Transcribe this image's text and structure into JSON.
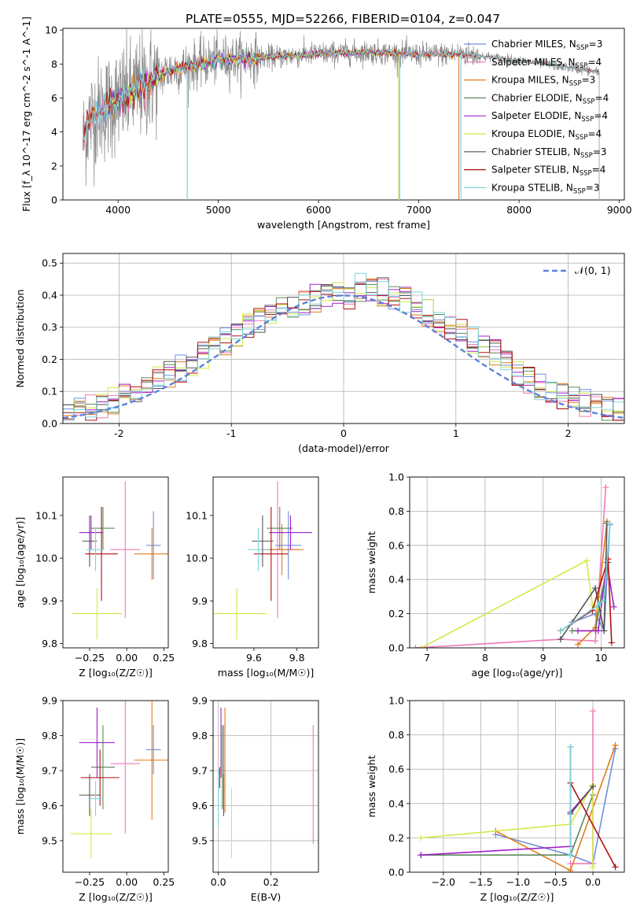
{
  "title": "PLATE=0555, MJD=52266, FIBERID=0104, z=0.047",
  "colors": {
    "Chabrier MILES": "#6f8fd9",
    "Salpeter MILES": "#f07ab8",
    "Kroupa MILES": "#e07b1a",
    "Chabrier ELODIE": "#5c8a5c",
    "Salpeter ELODIE": "#a020c8",
    "Kroupa ELODIE": "#d4e84a",
    "Chabrier STELIB": "#555555",
    "Salpeter STELIB": "#b01010",
    "Kroupa STELIB": "#7dd6dc",
    "normal": "#5b84d9",
    "grid": "#b0b0b0"
  },
  "chart_data": [
    {
      "id": "spectrum",
      "type": "line",
      "xlabel": "wavelength [Angstrom, rest frame]",
      "ylabel": "Flux [f_λ 10^-17 erg cm^-2 s^-1 A^-1]",
      "xlim": [
        3450,
        9050
      ],
      "ylim": [
        0,
        10.1
      ],
      "xticks": [
        4000,
        5000,
        6000,
        7000,
        8000,
        9000
      ],
      "yticks": [
        0,
        2,
        4,
        6,
        8,
        10
      ],
      "grid": false,
      "legend_position": "top-right",
      "data_range": [
        3650,
        8800
      ],
      "legend": [
        {
          "label": "Chabrier MILES, N",
          "sub": "SSP",
          "tail": "=3",
          "series": "Chabrier MILES"
        },
        {
          "label": "Salpeter MILES, N",
          "sub": "SSP",
          "tail": "=4",
          "series": "Salpeter MILES"
        },
        {
          "label": "Kroupa MILES, N",
          "sub": "SSP",
          "tail": "=3",
          "series": "Kroupa MILES"
        },
        {
          "label": "Chabrier ELODIE, N",
          "sub": "SSP",
          "tail": "=4",
          "series": "Chabrier ELODIE"
        },
        {
          "label": "Salpeter ELODIE, N",
          "sub": "SSP",
          "tail": "=4",
          "series": "Salpeter ELODIE"
        },
        {
          "label": "Kroupa ELODIE, N",
          "sub": "SSP",
          "tail": "=4",
          "series": "Kroupa ELODIE"
        },
        {
          "label": "Chabrier STELIB, N",
          "sub": "SSP",
          "tail": "=3",
          "series": "Chabrier STELIB"
        },
        {
          "label": "Salpeter STELIB, N",
          "sub": "SSP",
          "tail": "=4",
          "series": "Salpeter STELIB"
        },
        {
          "label": "Kroupa STELIB, N",
          "sub": "SSP",
          "tail": "=3",
          "series": "Kroupa STELIB"
        }
      ],
      "continuum": [
        [
          3650,
          3.4
        ],
        [
          3700,
          4.6
        ],
        [
          3800,
          5.2
        ],
        [
          3950,
          5.7
        ],
        [
          4100,
          6.2
        ],
        [
          4300,
          6.9
        ],
        [
          4500,
          7.6
        ],
        [
          4800,
          8.0
        ],
        [
          5000,
          8.25
        ],
        [
          5500,
          8.4
        ],
        [
          6000,
          8.6
        ],
        [
          6500,
          8.7
        ],
        [
          7000,
          8.55
        ],
        [
          7400,
          8.6
        ],
        [
          7500,
          8.55
        ],
        [
          8000,
          8.2
        ],
        [
          8500,
          7.8
        ],
        [
          8800,
          7.5
        ]
      ],
      "observed_series": "Chabrier STELIB",
      "model_series": "Kroupa STELIB",
      "model_ranges": {
        "Chabrier MILES": [
          3650,
          7400
        ],
        "Salpeter MILES": [
          3650,
          7400
        ],
        "Kroupa MILES": [
          3650,
          7400
        ],
        "Chabrier ELODIE": [
          3900,
          6800
        ],
        "Salpeter ELODIE": [
          3900,
          6800
        ],
        "Kroupa ELODIE": [
          3900,
          6800
        ],
        "Chabrier STELIB": [
          3650,
          8800
        ],
        "Salpeter STELIB": [
          3650,
          8800
        ],
        "Kroupa STELIB": [
          3650,
          8800
        ]
      },
      "dropouts": [
        [
          4690,
          0
        ],
        [
          6810,
          0
        ],
        [
          7420,
          0
        ]
      ]
    },
    {
      "id": "residuals",
      "type": "histogram",
      "xlabel": "(data-model)/error",
      "ylabel": "Normed distribution",
      "xlim": [
        -2.5,
        2.5
      ],
      "ylim": [
        0,
        0.53
      ],
      "xticks": [
        -2,
        -1,
        0,
        1,
        2
      ],
      "yticks": [
        0.0,
        0.1,
        0.2,
        0.3,
        0.4,
        0.5
      ],
      "grid": true,
      "legend_position": "top-right",
      "legend": [
        {
          "label": "𝒩(0, 1)",
          "series": "normal"
        }
      ],
      "bin_width": 0.1,
      "reference_curve": {
        "name": "normal",
        "mean": 0,
        "sigma": 1
      }
    },
    {
      "id": "age-vs-Z",
      "type": "errorbar",
      "xlabel": "Z [log₁₀(Z/Z☉)]",
      "ylabel": "age  [log₁₀(age/yr)]",
      "xlim": [
        -0.43,
        0.28
      ],
      "ylim": [
        9.79,
        10.19
      ],
      "xticks": [
        -0.25,
        0.0,
        0.25
      ],
      "xticklabels": [
        "−0.25",
        "0.00",
        "0.25"
      ],
      "yticks": [
        9.8,
        9.9,
        10.0,
        10.1
      ],
      "grid": false,
      "points": [
        {
          "series": "Chabrier MILES",
          "x": 0.18,
          "y": 10.03,
          "xerr": 0.05,
          "yerr": 0.08
        },
        {
          "series": "Salpeter MILES",
          "x": -0.01,
          "y": 10.02,
          "xerr": 0.1,
          "yerr": 0.16
        },
        {
          "series": "Kroupa MILES",
          "x": 0.17,
          "y": 10.01,
          "xerr": 0.12,
          "yerr": 0.06
        },
        {
          "series": "Chabrier ELODIE",
          "x": -0.16,
          "y": 10.07,
          "xerr": 0.08,
          "yerr": 0.05
        },
        {
          "series": "Salpeter ELODIE",
          "x": -0.24,
          "y": 10.06,
          "xerr": 0.08,
          "yerr": 0.04
        },
        {
          "series": "Kroupa ELODIE",
          "x": -0.2,
          "y": 9.87,
          "xerr": 0.17,
          "yerr": 0.06
        },
        {
          "series": "Chabrier STELIB",
          "x": -0.25,
          "y": 10.04,
          "xerr": 0.05,
          "yerr": 0.06
        },
        {
          "series": "Salpeter STELIB",
          "x": -0.17,
          "y": 10.01,
          "xerr": 0.11,
          "yerr": 0.11
        },
        {
          "series": "Kroupa STELIB",
          "x": -0.21,
          "y": 10.02,
          "xerr": 0.06,
          "yerr": 0.05
        }
      ]
    },
    {
      "id": "age-vs-mass",
      "type": "errorbar",
      "xlabel": "mass [log₁₀(M/M☉)]",
      "ylabel": "",
      "xlim": [
        9.41,
        9.9
      ],
      "ylim": [
        9.79,
        10.19
      ],
      "xticks": [
        9.6,
        9.8
      ],
      "yticks": [
        9.8,
        9.9,
        10.0,
        10.1
      ],
      "grid": false,
      "points": [
        {
          "series": "Chabrier MILES",
          "x": 9.76,
          "y": 10.03,
          "xerr": 0.06,
          "yerr": 0.08
        },
        {
          "series": "Salpeter MILES",
          "x": 9.71,
          "y": 10.02,
          "xerr": 0.08,
          "yerr": 0.16
        },
        {
          "series": "Kroupa MILES",
          "x": 9.73,
          "y": 10.02,
          "xerr": 0.1,
          "yerr": 0.06
        },
        {
          "series": "Chabrier ELODIE",
          "x": 9.72,
          "y": 10.07,
          "xerr": 0.06,
          "yerr": 0.05
        },
        {
          "series": "Salpeter ELODIE",
          "x": 9.77,
          "y": 10.06,
          "xerr": 0.1,
          "yerr": 0.04
        },
        {
          "series": "Kroupa ELODIE",
          "x": 9.52,
          "y": 9.87,
          "xerr": 0.14,
          "yerr": 0.06
        },
        {
          "series": "Chabrier STELIB",
          "x": 9.64,
          "y": 10.04,
          "xerr": 0.05,
          "yerr": 0.06
        },
        {
          "series": "Salpeter STELIB",
          "x": 9.68,
          "y": 10.01,
          "xerr": 0.08,
          "yerr": 0.11
        },
        {
          "series": "Kroupa STELIB",
          "x": 9.62,
          "y": 10.02,
          "xerr": 0.05,
          "yerr": 0.05
        }
      ]
    },
    {
      "id": "weight-vs-age",
      "type": "line",
      "xlabel": "age  [log₁₀(age/yr)]",
      "ylabel": "mass weight",
      "xlim": [
        6.7,
        10.4
      ],
      "ylim": [
        0,
        1.0
      ],
      "xticks": [
        7,
        8,
        9,
        10
      ],
      "yticks": [
        0.0,
        0.2,
        0.4,
        0.6,
        0.8,
        1.0
      ],
      "grid": true,
      "series": [
        {
          "name": "Chabrier MILES",
          "points": [
            [
              9.5,
              0.15
            ],
            [
              9.9,
              0.2
            ],
            [
              10.05,
              0.1
            ],
            [
              10.15,
              0.72
            ]
          ]
        },
        {
          "name": "Salpeter MILES",
          "points": [
            [
              6.8,
              0.0
            ],
            [
              9.3,
              0.05
            ],
            [
              9.9,
              0.04
            ],
            [
              10.08,
              0.94
            ]
          ]
        },
        {
          "name": "Kroupa MILES",
          "points": [
            [
              9.6,
              0.02
            ],
            [
              9.9,
              0.12
            ],
            [
              10.1,
              0.74
            ]
          ]
        },
        {
          "name": "Chabrier ELODIE",
          "points": [
            [
              9.5,
              0.1
            ],
            [
              9.9,
              0.1
            ],
            [
              10.0,
              0.3
            ],
            [
              10.12,
              0.5
            ]
          ]
        },
        {
          "name": "Salpeter ELODIE",
          "points": [
            [
              9.6,
              0.1
            ],
            [
              9.95,
              0.1
            ],
            [
              10.1,
              0.5
            ],
            [
              10.22,
              0.24
            ]
          ]
        },
        {
          "name": "Kroupa ELODIE",
          "points": [
            [
              6.9,
              0.0
            ],
            [
              9.75,
              0.51
            ],
            [
              9.85,
              0.25
            ],
            [
              9.95,
              0.23
            ]
          ]
        },
        {
          "name": "Chabrier STELIB",
          "points": [
            [
              9.3,
              0.05
            ],
            [
              9.9,
              0.35
            ],
            [
              10.05,
              0.1
            ],
            [
              10.1,
              0.73
            ]
          ]
        },
        {
          "name": "Salpeter STELIB",
          "points": [
            [
              9.3,
              0.1
            ],
            [
              9.85,
              0.22
            ],
            [
              10.12,
              0.52
            ],
            [
              10.18,
              0.03
            ]
          ]
        },
        {
          "name": "Kroupa STELIB",
          "points": [
            [
              9.3,
              0.1
            ],
            [
              9.95,
              0.25
            ],
            [
              10.05,
              0.28
            ],
            [
              10.15,
              0.73
            ]
          ]
        }
      ]
    },
    {
      "id": "mass-vs-Z",
      "type": "errorbar",
      "xlabel": "Z [log₁₀(Z/Z☉)]",
      "ylabel": "mass [log₁₀(M/M☉)]",
      "xlim": [
        -0.43,
        0.28
      ],
      "ylim": [
        9.41,
        9.9
      ],
      "xticks": [
        -0.25,
        0.0,
        0.25
      ],
      "xticklabels": [
        "−0.25",
        "0.00",
        "0.25"
      ],
      "yticks": [
        9.5,
        9.6,
        9.7,
        9.8,
        9.9
      ],
      "grid": false,
      "points": [
        {
          "series": "Chabrier MILES",
          "x": 0.18,
          "y": 9.76,
          "xerr": 0.05,
          "yerr": 0.07
        },
        {
          "series": "Salpeter MILES",
          "x": -0.01,
          "y": 9.72,
          "xerr": 0.1,
          "yerr": 0.2
        },
        {
          "series": "Kroupa MILES",
          "x": 0.17,
          "y": 9.73,
          "xerr": 0.12,
          "yerr": 0.17
        },
        {
          "series": "Chabrier ELODIE",
          "x": -0.16,
          "y": 9.71,
          "xerr": 0.08,
          "yerr": 0.12
        },
        {
          "series": "Salpeter ELODIE",
          "x": -0.2,
          "y": 9.78,
          "xerr": 0.12,
          "yerr": 0.1
        },
        {
          "series": "Kroupa ELODIE",
          "x": -0.24,
          "y": 9.52,
          "xerr": 0.14,
          "yerr": 0.07
        },
        {
          "series": "Chabrier STELIB",
          "x": -0.25,
          "y": 9.63,
          "xerr": 0.07,
          "yerr": 0.06
        },
        {
          "series": "Salpeter STELIB",
          "x": -0.18,
          "y": 9.68,
          "xerr": 0.13,
          "yerr": 0.08
        },
        {
          "series": "Kroupa STELIB",
          "x": -0.21,
          "y": 9.62,
          "xerr": 0.05,
          "yerr": 0.05
        }
      ]
    },
    {
      "id": "mass-vs-EBV",
      "type": "errorbar",
      "xlabel": "E(B-V)",
      "ylabel": "",
      "xlim": [
        -0.02,
        0.38
      ],
      "ylim": [
        9.41,
        9.9
      ],
      "xticks": [
        0.0,
        0.2
      ],
      "xticklabels": [
        "0.0",
        "0.2"
      ],
      "yticks": [
        9.5,
        9.6,
        9.7,
        9.8,
        9.9
      ],
      "grid": true,
      "points": [
        {
          "series": "Chabrier MILES",
          "x": 0.02,
          "y": 9.76,
          "xerr": 0.0,
          "yerr": 0.07
        },
        {
          "series": "Salpeter MILES",
          "x": 0.36,
          "y": 9.66,
          "xerr": 0.0,
          "yerr": 0.17
        },
        {
          "series": "Kroupa MILES",
          "x": 0.025,
          "y": 9.73,
          "xerr": 0.0,
          "yerr": 0.15
        },
        {
          "series": "Chabrier ELODIE",
          "x": 0.015,
          "y": 9.71,
          "xerr": 0.0,
          "yerr": 0.12
        },
        {
          "series": "Salpeter ELODIE",
          "x": 0.01,
          "y": 9.78,
          "xerr": 0.0,
          "yerr": 0.1
        },
        {
          "series": "Kroupa ELODIE",
          "x": 0.05,
          "y": 9.55,
          "xerr": 0.0,
          "yerr": 0.1
        },
        {
          "series": "Chabrier STELIB",
          "x": 0.02,
          "y": 9.63,
          "xerr": 0.0,
          "yerr": 0.06
        },
        {
          "series": "Salpeter STELIB",
          "x": 0.005,
          "y": 9.68,
          "xerr": 0.0,
          "yerr": 0.03
        },
        {
          "series": "Kroupa STELIB",
          "x": 0.0,
          "y": 9.62,
          "xerr": 0.0,
          "yerr": 0.08
        }
      ]
    },
    {
      "id": "weight-vs-Z",
      "type": "line",
      "xlabel": "Z [log₁₀(Z/Z☉)]",
      "ylabel": "mass weight",
      "xlim": [
        -2.45,
        0.42
      ],
      "ylim": [
        0,
        1.0
      ],
      "xticks": [
        -2.0,
        -1.5,
        -1.0,
        -0.5,
        0.0
      ],
      "xticklabels": [
        "−2.0",
        "−1.5",
        "−1.0",
        "−0.5",
        "0.0"
      ],
      "yticks": [
        0.0,
        0.2,
        0.4,
        0.6,
        0.8,
        1.0
      ],
      "grid": true,
      "series": [
        {
          "name": "Chabrier MILES",
          "points": [
            [
              -1.3,
              0.22
            ],
            [
              -0.3,
              0.1
            ],
            [
              0.0,
              0.05
            ],
            [
              0.3,
              0.72
            ]
          ]
        },
        {
          "name": "Salpeter MILES",
          "points": [
            [
              -0.3,
              0.05
            ],
            [
              0.0,
              0.05
            ],
            [
              0.0,
              0.94
            ]
          ]
        },
        {
          "name": "Kroupa MILES",
          "points": [
            [
              -1.3,
              0.24
            ],
            [
              -0.3,
              0.01
            ],
            [
              0.3,
              0.74
            ]
          ]
        },
        {
          "name": "Chabrier ELODIE",
          "points": [
            [
              -2.3,
              0.1
            ],
            [
              -0.3,
              0.1
            ],
            [
              0.0,
              0.45
            ]
          ]
        },
        {
          "name": "Salpeter ELODIE",
          "points": [
            [
              -2.3,
              0.1
            ],
            [
              -0.3,
              0.15
            ],
            [
              -0.3,
              0.35
            ],
            [
              0.0,
              0.5
            ]
          ]
        },
        {
          "name": "Kroupa ELODIE",
          "points": [
            [
              -2.3,
              0.2
            ],
            [
              -0.3,
              0.28
            ],
            [
              0.0,
              0.51
            ],
            [
              0.0,
              0.03
            ]
          ]
        },
        {
          "name": "Chabrier STELIB",
          "points": [
            [
              -0.3,
              0.73
            ],
            [
              -0.3,
              0.34
            ],
            [
              0.0,
              0.5
            ]
          ]
        },
        {
          "name": "Salpeter STELIB",
          "points": [
            [
              -0.3,
              0.52
            ],
            [
              0.3,
              0.03
            ]
          ]
        },
        {
          "name": "Kroupa STELIB",
          "points": [
            [
              -0.3,
              0.73
            ],
            [
              -0.3,
              0.1
            ]
          ]
        }
      ]
    }
  ]
}
